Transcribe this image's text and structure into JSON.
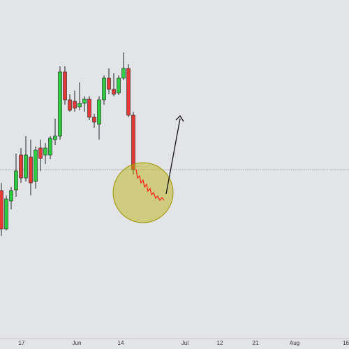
{
  "chart_data": {
    "type": "candlestick",
    "up_color": "#2ecc40",
    "down_color": "#e53935",
    "ylim": [
      0,
      485
    ],
    "x_labels": [
      "17",
      "Jun",
      "14",
      "Jul",
      "12",
      "21",
      "Aug",
      "16"
    ],
    "open": [
      212,
      157,
      197,
      213,
      263,
      230,
      260,
      225,
      273,
      263,
      263,
      285,
      290,
      382,
      342,
      340,
      332,
      337,
      343,
      317,
      307,
      342,
      373,
      357,
      352,
      373,
      387,
      320
    ],
    "high": [
      223,
      205,
      217,
      265,
      273,
      290,
      285,
      275,
      285,
      280,
      290,
      315,
      390,
      390,
      350,
      355,
      367,
      347,
      347,
      322,
      347,
      377,
      387,
      380,
      377,
      410,
      393,
      325
    ],
    "low": [
      147,
      155,
      185,
      203,
      223,
      225,
      205,
      215,
      240,
      250,
      257,
      277,
      285,
      335,
      325,
      325,
      327,
      325,
      313,
      302,
      285,
      335,
      350,
      347,
      349,
      370,
      317,
      235
    ],
    "close": [
      157,
      200,
      212,
      240,
      230,
      263,
      223,
      270,
      258,
      273,
      287,
      290,
      382,
      342,
      327,
      330,
      337,
      343,
      317,
      310,
      342,
      373,
      357,
      350,
      373,
      387,
      320,
      242
    ]
  }
}
